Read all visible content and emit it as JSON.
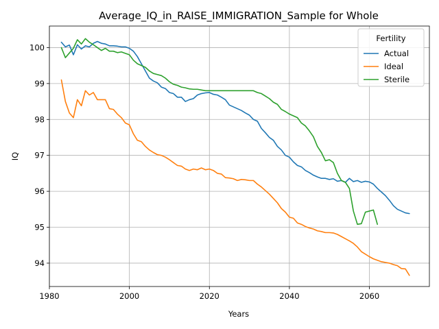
{
  "chart_data": {
    "type": "line",
    "title": "Average_IQ_in_RAISE_IMMIGRATION_Sample for Whole",
    "xlabel": "Years",
    "ylabel": "IQ",
    "xlim": [
      1980,
      2075
    ],
    "ylim": [
      93.35,
      100.6
    ],
    "xticks": [
      1980,
      2000,
      2020,
      2040,
      2060
    ],
    "xtick_labels": [
      "1980",
      "2000",
      "2020",
      "2040",
      "2060"
    ],
    "yticks": [
      94,
      95,
      96,
      97,
      98,
      99,
      100
    ],
    "ytick_labels": [
      "94",
      "95",
      "96",
      "97",
      "98",
      "99",
      "100"
    ],
    "grid": true,
    "legend": {
      "title": "Fertility",
      "placement": "top-right"
    },
    "series": [
      {
        "name": "Actual",
        "color": "#1f77b4",
        "x": [
          1983,
          1984,
          1985,
          1986,
          1987,
          1988,
          1989,
          1990,
          1991,
          1992,
          1993,
          1994,
          1995,
          1996,
          1997,
          1998,
          1999,
          2000,
          2001,
          2002,
          2003,
          2004,
          2005,
          2006,
          2007,
          2008,
          2009,
          2010,
          2011,
          2012,
          2013,
          2014,
          2015,
          2016,
          2017,
          2018,
          2019,
          2020,
          2021,
          2022,
          2023,
          2024,
          2025,
          2026,
          2027,
          2028,
          2029,
          2030,
          2031,
          2032,
          2033,
          2034,
          2035,
          2036,
          2037,
          2038,
          2039,
          2040,
          2041,
          2042,
          2043,
          2044,
          2045,
          2046,
          2047,
          2048,
          2049,
          2050,
          2051,
          2052,
          2053,
          2054,
          2055,
          2056,
          2057,
          2058,
          2059,
          2060,
          2061,
          2062,
          2063,
          2064,
          2065,
          2066,
          2067,
          2068,
          2069,
          2070
        ],
        "y": [
          100.15,
          100.02,
          100.07,
          99.8,
          100.08,
          99.96,
          100.05,
          100.02,
          100.12,
          100.17,
          100.12,
          100.1,
          100.05,
          100.05,
          100.04,
          100.02,
          100.02,
          99.98,
          99.9,
          99.75,
          99.55,
          99.35,
          99.15,
          99.07,
          99.02,
          98.9,
          98.86,
          98.75,
          98.72,
          98.62,
          98.62,
          98.5,
          98.55,
          98.58,
          98.68,
          98.72,
          98.74,
          98.75,
          98.7,
          98.68,
          98.62,
          98.55,
          98.4,
          98.35,
          98.3,
          98.25,
          98.18,
          98.12,
          98.0,
          97.95,
          97.75,
          97.63,
          97.5,
          97.42,
          97.25,
          97.15,
          97.0,
          96.95,
          96.82,
          96.72,
          96.68,
          96.58,
          96.52,
          96.45,
          96.4,
          96.36,
          96.36,
          96.33,
          96.35,
          96.28,
          96.3,
          96.25,
          96.36,
          96.27,
          96.3,
          96.25,
          96.28,
          96.26,
          96.2,
          96.08,
          95.98,
          95.88,
          95.75,
          95.6,
          95.5,
          95.45,
          95.4,
          95.38
        ]
      },
      {
        "name": "Ideal",
        "color": "#ff7f0e",
        "x": [
          1983,
          1984,
          1985,
          1986,
          1987,
          1988,
          1989,
          1990,
          1991,
          1992,
          1993,
          1994,
          1995,
          1996,
          1997,
          1998,
          1999,
          2000,
          2001,
          2002,
          2003,
          2004,
          2005,
          2006,
          2007,
          2008,
          2009,
          2010,
          2011,
          2012,
          2013,
          2014,
          2015,
          2016,
          2017,
          2018,
          2019,
          2020,
          2021,
          2022,
          2023,
          2024,
          2025,
          2026,
          2027,
          2028,
          2029,
          2030,
          2031,
          2032,
          2033,
          2034,
          2035,
          2036,
          2037,
          2038,
          2039,
          2040,
          2041,
          2042,
          2043,
          2044,
          2045,
          2046,
          2047,
          2048,
          2049,
          2050,
          2051,
          2052,
          2053,
          2054,
          2055,
          2056,
          2057,
          2058,
          2059,
          2060,
          2061,
          2062,
          2063,
          2064,
          2065,
          2066,
          2067,
          2068,
          2069,
          2070
        ],
        "y": [
          99.1,
          98.5,
          98.18,
          98.05,
          98.55,
          98.38,
          98.8,
          98.68,
          98.75,
          98.55,
          98.55,
          98.55,
          98.3,
          98.28,
          98.15,
          98.05,
          97.9,
          97.85,
          97.6,
          97.42,
          97.38,
          97.25,
          97.15,
          97.08,
          97.02,
          97.0,
          96.95,
          96.88,
          96.8,
          96.72,
          96.7,
          96.62,
          96.58,
          96.62,
          96.6,
          96.65,
          96.6,
          96.62,
          96.58,
          96.5,
          96.48,
          96.38,
          96.37,
          96.35,
          96.3,
          96.33,
          96.32,
          96.3,
          96.3,
          96.2,
          96.12,
          96.02,
          95.92,
          95.8,
          95.68,
          95.52,
          95.42,
          95.28,
          95.25,
          95.12,
          95.08,
          95.02,
          94.98,
          94.95,
          94.9,
          94.88,
          94.85,
          94.85,
          94.84,
          94.8,
          94.74,
          94.68,
          94.62,
          94.55,
          94.45,
          94.32,
          94.25,
          94.18,
          94.12,
          94.08,
          94.04,
          94.02,
          94.0,
          93.96,
          93.93,
          93.85,
          93.84,
          93.66
        ]
      },
      {
        "name": "Sterile",
        "color": "#2ca02c",
        "x": [
          1983,
          1984,
          1985,
          1986,
          1987,
          1988,
          1989,
          1990,
          1991,
          1992,
          1993,
          1994,
          1995,
          1996,
          1997,
          1998,
          1999,
          2000,
          2001,
          2002,
          2003,
          2004,
          2005,
          2006,
          2007,
          2008,
          2009,
          2010,
          2011,
          2012,
          2013,
          2014,
          2015,
          2016,
          2017,
          2018,
          2019,
          2020,
          2021,
          2022,
          2023,
          2024,
          2025,
          2026,
          2027,
          2028,
          2029,
          2030,
          2031,
          2032,
          2033,
          2034,
          2035,
          2036,
          2037,
          2038,
          2039,
          2040,
          2041,
          2042,
          2043,
          2044,
          2045,
          2046,
          2047,
          2048,
          2049,
          2050,
          2051,
          2052,
          2053,
          2054,
          2055,
          2056,
          2057,
          2058,
          2059,
          2060,
          2061,
          2062
        ],
        "y": [
          100.0,
          99.72,
          99.85,
          99.98,
          100.22,
          100.1,
          100.25,
          100.15,
          100.08,
          100.0,
          99.92,
          99.98,
          99.9,
          99.9,
          99.86,
          99.88,
          99.84,
          99.8,
          99.65,
          99.55,
          99.5,
          99.45,
          99.35,
          99.28,
          99.25,
          99.22,
          99.15,
          99.05,
          98.98,
          98.95,
          98.9,
          98.88,
          98.85,
          98.84,
          98.84,
          98.82,
          98.8,
          98.8,
          98.8,
          98.8,
          98.8,
          98.8,
          98.8,
          98.8,
          98.8,
          98.8,
          98.8,
          98.8,
          98.8,
          98.75,
          98.72,
          98.65,
          98.58,
          98.48,
          98.42,
          98.28,
          98.22,
          98.15,
          98.1,
          98.05,
          97.9,
          97.82,
          97.68,
          97.52,
          97.25,
          97.08,
          96.85,
          96.88,
          96.8,
          96.5,
          96.3,
          96.25,
          96.08,
          95.45,
          95.08,
          95.1,
          95.42,
          95.45,
          95.48,
          95.08
        ]
      }
    ]
  }
}
